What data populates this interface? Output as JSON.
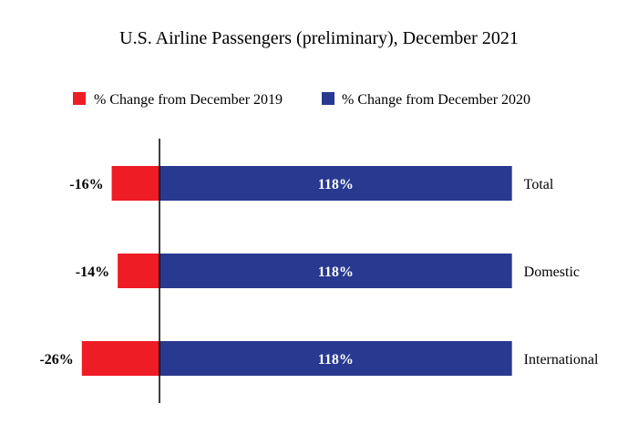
{
  "chart_data": {
    "type": "bar",
    "orientation": "horizontal",
    "title": "U.S. Airline Passengers (preliminary), December 2021",
    "categories": [
      "Total",
      "Domestic",
      "International"
    ],
    "series": [
      {
        "name": "% Change from December 2019",
        "values": [
          -16,
          -14,
          -26
        ],
        "labels": [
          "-16%",
          "-14%",
          "-26%"
        ],
        "color": "#ee1c25"
      },
      {
        "name": "% Change from December 2020",
        "values": [
          118,
          118,
          118
        ],
        "labels": [
          "118%",
          "118%",
          "118%"
        ],
        "color": "#2a3990"
      }
    ],
    "legend_position": "top",
    "grid": false
  }
}
